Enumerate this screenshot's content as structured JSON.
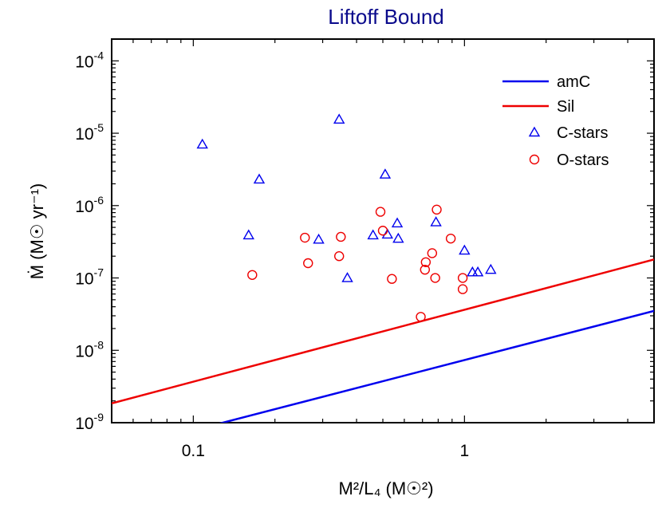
{
  "chart_data": {
    "type": "scatter",
    "title": "Liftoff Bound",
    "xlabel": "M²/L₄   (M☉²)",
    "ylabel": "Ṁ (M☉ yr⁻¹)",
    "xscale": "log",
    "yscale": "log",
    "xlim": [
      0.05,
      5
    ],
    "ylim": [
      1e-09,
      0.0002
    ],
    "grid": false,
    "legend_position": "top-right",
    "x_ticks": [
      {
        "value": 0.1,
        "label": "0.1"
      },
      {
        "value": 1,
        "label": "1"
      }
    ],
    "y_ticks": [
      {
        "value": 1e-09,
        "base": "10",
        "exp": "-9"
      },
      {
        "value": 1e-08,
        "base": "10",
        "exp": "-8"
      },
      {
        "value": 1e-07,
        "base": "10",
        "exp": "-7"
      },
      {
        "value": 1e-06,
        "base": "10",
        "exp": "-6"
      },
      {
        "value": 1e-05,
        "base": "10",
        "exp": "-5"
      },
      {
        "value": 0.0001,
        "base": "10",
        "exp": "-4"
      }
    ],
    "series": [
      {
        "name": "amC",
        "kind": "line",
        "color": "#0000ee",
        "x": [
          0.05,
          5
        ],
        "y": [
          4e-10,
          3.5e-08
        ]
      },
      {
        "name": "Sil",
        "kind": "line",
        "color": "#ee0000",
        "x": [
          0.05,
          5
        ],
        "y": [
          1.85e-09,
          1.8e-07
        ]
      },
      {
        "name": "C-stars",
        "kind": "scatter",
        "marker": "triangle",
        "color": "#0000ee",
        "points": [
          [
            0.108,
            7e-06
          ],
          [
            0.345,
            1.55e-05
          ],
          [
            0.175,
            2.3e-06
          ],
          [
            0.51,
            2.7e-06
          ],
          [
            0.16,
            3.9e-07
          ],
          [
            0.29,
            3.4e-07
          ],
          [
            0.46,
            3.9e-07
          ],
          [
            0.52,
            4e-07
          ],
          [
            0.565,
            5.7e-07
          ],
          [
            0.57,
            3.5e-07
          ],
          [
            0.785,
            5.9e-07
          ],
          [
            1.0,
            2.4e-07
          ],
          [
            0.37,
            1e-07
          ],
          [
            1.07,
            1.2e-07
          ],
          [
            1.12,
            1.2e-07
          ],
          [
            1.25,
            1.3e-07
          ]
        ]
      },
      {
        "name": "O-stars",
        "kind": "scatter",
        "marker": "circle",
        "color": "#ee0000",
        "points": [
          [
            0.165,
            1.1e-07
          ],
          [
            0.258,
            3.6e-07
          ],
          [
            0.265,
            1.6e-07
          ],
          [
            0.35,
            3.7e-07
          ],
          [
            0.345,
            2e-07
          ],
          [
            0.49,
            8.2e-07
          ],
          [
            0.5,
            4.5e-07
          ],
          [
            0.54,
            9.7e-08
          ],
          [
            0.69,
            2.9e-08
          ],
          [
            0.715,
            1.3e-07
          ],
          [
            0.72,
            1.65e-07
          ],
          [
            0.76,
            2.2e-07
          ],
          [
            0.78,
            1e-07
          ],
          [
            0.79,
            8.8e-07
          ],
          [
            0.89,
            3.5e-07
          ],
          [
            0.985,
            1e-07
          ],
          [
            0.985,
            7e-08
          ]
        ]
      }
    ]
  }
}
